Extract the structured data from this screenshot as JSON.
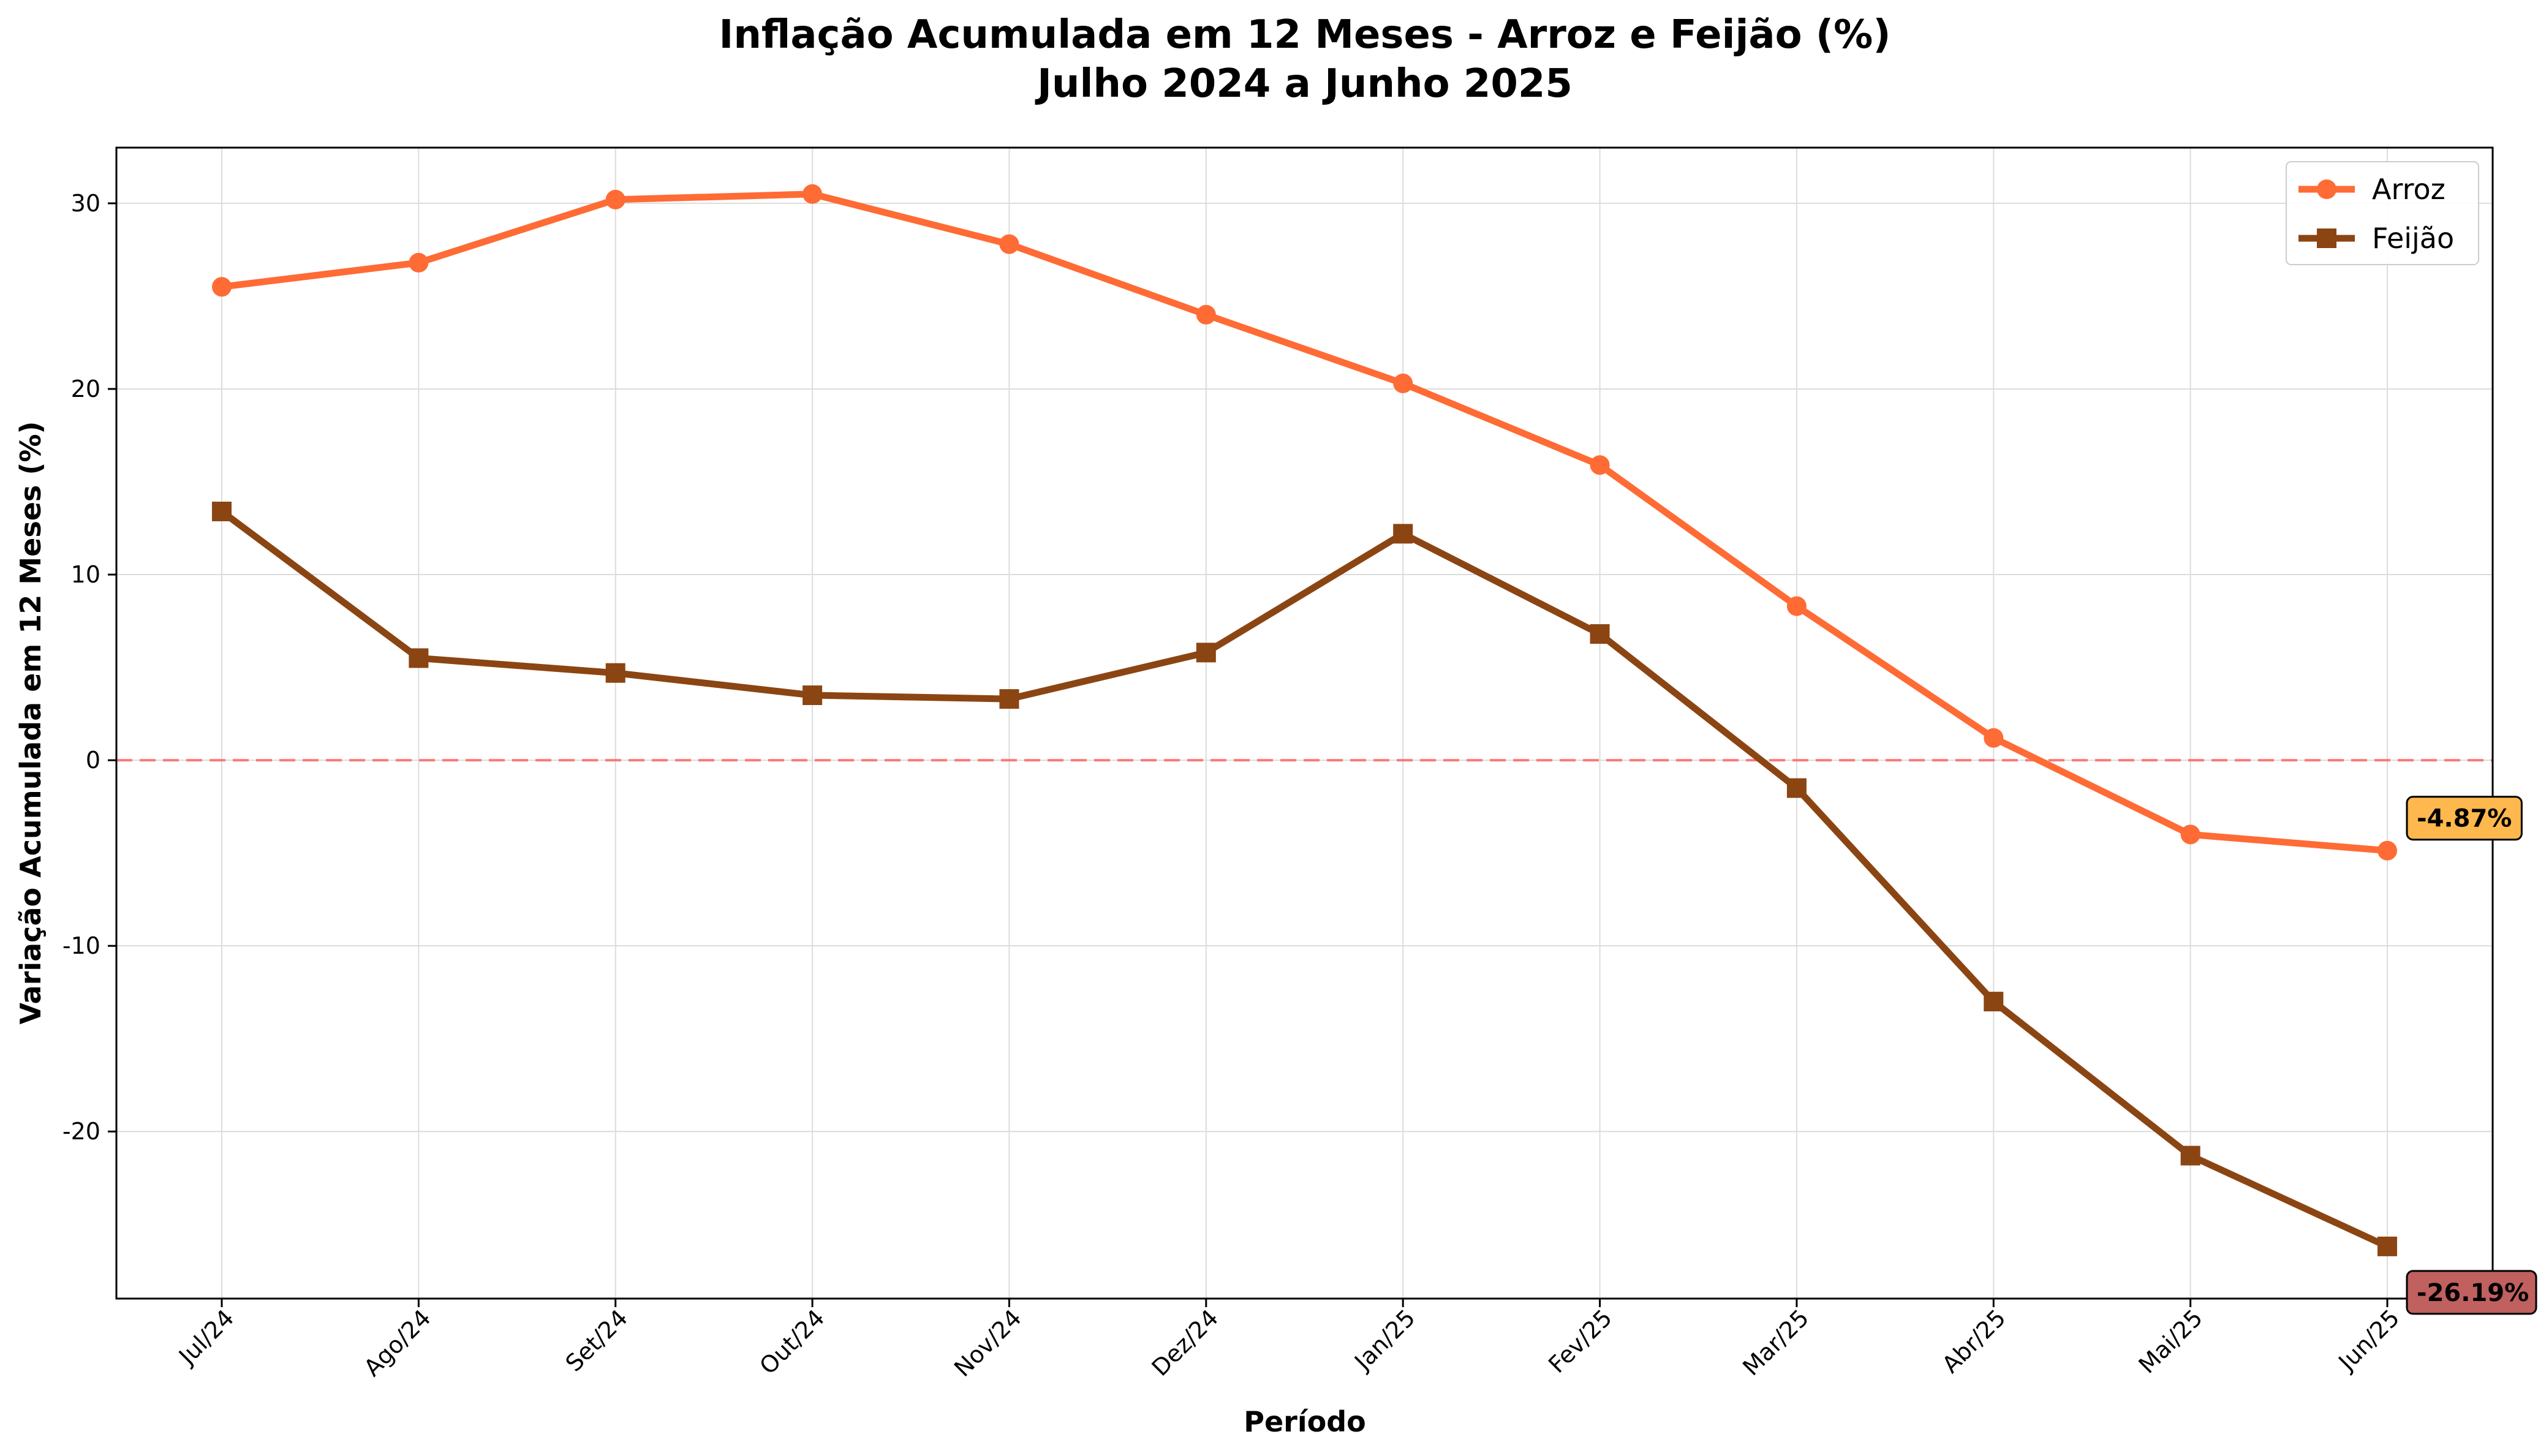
{
  "chart_data": {
    "type": "line",
    "title": "Inflação Acumulada em 12 Meses - Arroz e Feijão (%)",
    "subtitle": "Julho 2024 a Junho 2025",
    "xlabel": "Período",
    "ylabel": "Variação Acumulada em 12 Meses (%)",
    "categories": [
      "Jul/24",
      "Ago/24",
      "Set/24",
      "Out/24",
      "Nov/24",
      "Dez/24",
      "Jan/25",
      "Fev/25",
      "Mar/25",
      "Abr/25",
      "Mai/25",
      "Jun/25"
    ],
    "ylim": [
      -29,
      33
    ],
    "yticks": [
      -20,
      -10,
      0,
      10,
      20,
      30
    ],
    "grid": true,
    "legend_position": "top-right",
    "zero_line": {
      "value": 0,
      "color": "#ff6b6b",
      "style": "dashed"
    },
    "series": [
      {
        "name": "Arroz",
        "marker": "circle",
        "color": "#ff6b35",
        "values": [
          25.5,
          26.8,
          30.2,
          30.5,
          27.8,
          24.0,
          20.3,
          15.9,
          8.3,
          1.2,
          -4.0,
          -4.87
        ]
      },
      {
        "name": "Feijão",
        "marker": "square",
        "color": "#8b4513",
        "values": [
          13.4,
          5.5,
          4.7,
          3.5,
          3.3,
          5.8,
          12.2,
          6.8,
          -1.5,
          -13.0,
          -21.3,
          -26.19
        ]
      }
    ],
    "annotations": [
      {
        "series": "Arroz",
        "category": "Jun/25",
        "text": "-4.87%",
        "bg_color": "#ffb84d"
      },
      {
        "series": "Feijão",
        "category": "Jun/25",
        "text": "-26.19%",
        "bg_color": "#c0605f"
      }
    ]
  }
}
